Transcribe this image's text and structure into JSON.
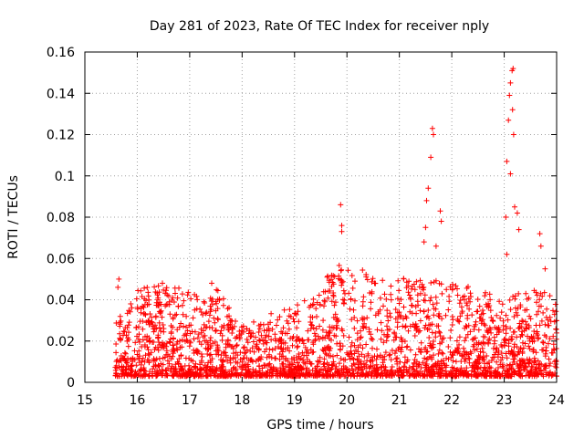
{
  "chart_data": {
    "type": "scatter",
    "title": "Day 281 of 2023, Rate Of TEC Index for receiver nply",
    "xlabel": "GPS time / hours",
    "ylabel": "ROTI / TECUs",
    "xlim": [
      15,
      24
    ],
    "ylim": [
      0,
      0.16
    ],
    "xticks": [
      15,
      16,
      17,
      18,
      19,
      20,
      21,
      22,
      23,
      24
    ],
    "yticks": [
      0,
      0.02,
      0.04,
      0.06,
      0.08,
      0.1,
      0.12,
      0.14,
      0.16
    ],
    "xtick_labels": [
      "15",
      "16",
      "17",
      "18",
      "19",
      "20",
      "21",
      "22",
      "23",
      "24"
    ],
    "ytick_labels": [
      "0",
      "0.02",
      "0.04",
      "0.06",
      "0.08",
      "0.1",
      "0.12",
      "0.14",
      "0.16"
    ],
    "grid": true,
    "marker": "+",
    "color": "#ff0000",
    "x_range_data": [
      15.58,
      24.0
    ],
    "envelope_hours": [
      15.6,
      16.0,
      16.5,
      17.0,
      17.5,
      18.0,
      18.5,
      19.0,
      19.5,
      19.7,
      19.85,
      20.0,
      20.5,
      21.0,
      21.5,
      22.0,
      22.5,
      23.0,
      23.5,
      24.0
    ],
    "envelope_max_roti": [
      0.031,
      0.045,
      0.048,
      0.044,
      0.046,
      0.028,
      0.033,
      0.037,
      0.045,
      0.056,
      0.062,
      0.058,
      0.055,
      0.05,
      0.052,
      0.05,
      0.046,
      0.042,
      0.045,
      0.043
    ],
    "notable_points": [
      {
        "x": 15.65,
        "y": 0.05
      },
      {
        "x": 15.63,
        "y": 0.046
      },
      {
        "x": 16.48,
        "y": 0.048
      },
      {
        "x": 17.42,
        "y": 0.048
      },
      {
        "x": 19.88,
        "y": 0.086
      },
      {
        "x": 19.9,
        "y": 0.076
      },
      {
        "x": 19.9,
        "y": 0.073
      },
      {
        "x": 21.55,
        "y": 0.094
      },
      {
        "x": 21.52,
        "y": 0.088
      },
      {
        "x": 21.6,
        "y": 0.109
      },
      {
        "x": 21.63,
        "y": 0.123
      },
      {
        "x": 21.65,
        "y": 0.12
      },
      {
        "x": 21.5,
        "y": 0.075
      },
      {
        "x": 21.47,
        "y": 0.068
      },
      {
        "x": 21.78,
        "y": 0.083
      },
      {
        "x": 21.8,
        "y": 0.078
      },
      {
        "x": 21.7,
        "y": 0.066
      },
      {
        "x": 23.05,
        "y": 0.107
      },
      {
        "x": 23.08,
        "y": 0.127
      },
      {
        "x": 23.1,
        "y": 0.139
      },
      {
        "x": 23.12,
        "y": 0.145
      },
      {
        "x": 23.15,
        "y": 0.151
      },
      {
        "x": 23.17,
        "y": 0.152
      },
      {
        "x": 23.16,
        "y": 0.132
      },
      {
        "x": 23.18,
        "y": 0.12
      },
      {
        "x": 23.12,
        "y": 0.101
      },
      {
        "x": 23.2,
        "y": 0.085
      },
      {
        "x": 23.25,
        "y": 0.082
      },
      {
        "x": 23.03,
        "y": 0.08
      },
      {
        "x": 23.28,
        "y": 0.074
      },
      {
        "x": 23.05,
        "y": 0.062
      },
      {
        "x": 23.68,
        "y": 0.072
      },
      {
        "x": 23.7,
        "y": 0.066
      },
      {
        "x": 23.78,
        "y": 0.055
      }
    ]
  }
}
